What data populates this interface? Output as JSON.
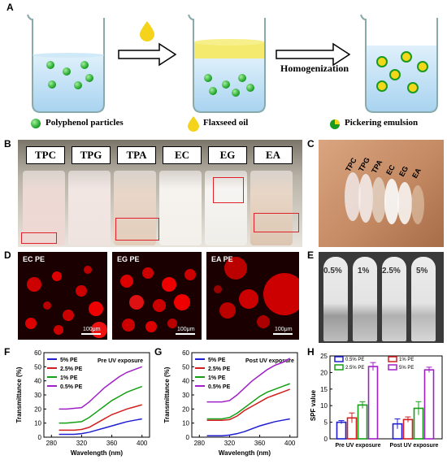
{
  "panel_labels": {
    "a": "A",
    "b": "B",
    "c": "C",
    "d": "D",
    "e": "E",
    "f": "F",
    "g": "G",
    "h": "H"
  },
  "schematic": {
    "homogenization": "Homogenization",
    "legend": [
      "Polyphenol particles",
      "Flaxseed oil",
      "Pickering emulsion"
    ]
  },
  "vials": [
    "TPC",
    "TPG",
    "TPA",
    "EC",
    "EG",
    "EA"
  ],
  "arm_labels": [
    "TPC",
    "TPG",
    "TPA",
    "EC",
    "EG",
    "EA"
  ],
  "micrographs": [
    {
      "label": "EC PE",
      "scale": "100μm"
    },
    {
      "label": "EG PE",
      "scale": "100μm"
    },
    {
      "label": "EA PE",
      "scale": "100μm"
    }
  ],
  "tubes": [
    "0.5%",
    "1%",
    "2.5%",
    "5%"
  ],
  "colors": {
    "s5": "#1f1fd1",
    "s25": "#d11f1f",
    "s1": "#14a014",
    "s05": "#a020c8"
  },
  "chart_data": [
    {
      "type": "line",
      "annotation": "Pre UV exposure",
      "xlabel": "Wavelength (nm)",
      "ylabel": "Transmittance (%)",
      "xlim": [
        270,
        410
      ],
      "ylim": [
        0,
        60
      ],
      "xticks": [
        280,
        320,
        360,
        400
      ],
      "yticks": [
        0,
        10,
        20,
        30,
        40,
        50,
        60
      ],
      "x": [
        290,
        300,
        310,
        320,
        330,
        340,
        350,
        360,
        370,
        380,
        390,
        400
      ],
      "series": [
        {
          "name": "5% PE",
          "color": "#1f1fd1",
          "values": [
            2,
            2,
            2,
            2.5,
            3.5,
            5,
            6.5,
            8,
            9.5,
            11,
            12,
            13
          ]
        },
        {
          "name": "2.5% PE",
          "color": "#d11f1f",
          "values": [
            5,
            5,
            5,
            5.5,
            7,
            10,
            13,
            16,
            18,
            20,
            21.5,
            23
          ]
        },
        {
          "name": "1% PE",
          "color": "#14a014",
          "values": [
            10,
            10,
            10.5,
            11,
            14,
            18,
            22,
            26,
            29,
            32,
            34,
            36
          ]
        },
        {
          "name": "0.5% PE",
          "color": "#a020c8",
          "values": [
            20,
            20,
            20.5,
            21,
            25,
            30,
            35,
            39,
            43,
            46,
            48,
            50
          ]
        }
      ]
    },
    {
      "type": "line",
      "annotation": "Post UV exposure",
      "xlabel": "Wavelength (nm)",
      "ylabel": "Transmittance (%)",
      "xlim": [
        270,
        410
      ],
      "ylim": [
        0,
        60
      ],
      "xticks": [
        280,
        320,
        360,
        400
      ],
      "yticks": [
        0,
        10,
        20,
        30,
        40,
        50,
        60
      ],
      "x": [
        290,
        300,
        310,
        320,
        330,
        340,
        350,
        360,
        370,
        380,
        390,
        400
      ],
      "series": [
        {
          "name": "5% PE",
          "color": "#1f1fd1",
          "values": [
            1,
            1,
            1,
            1.5,
            2.5,
            4,
            6,
            8,
            9.5,
            11,
            12,
            13
          ]
        },
        {
          "name": "2.5% PE",
          "color": "#d11f1f",
          "values": [
            12,
            12,
            12,
            12.5,
            15,
            19,
            22,
            25,
            28,
            30,
            32,
            34
          ]
        },
        {
          "name": "1% PE",
          "color": "#14a014",
          "values": [
            13,
            13,
            13,
            14,
            17,
            21,
            25,
            29,
            32,
            34,
            36,
            38
          ]
        },
        {
          "name": "0.5% PE",
          "color": "#a020c8",
          "values": [
            25,
            25,
            25,
            26,
            30,
            35,
            40,
            44,
            48,
            51,
            53,
            56
          ]
        }
      ]
    },
    {
      "type": "bar",
      "ylabel": "SPF value",
      "categories": [
        "Pre UV exposure",
        "Post UV exposure"
      ],
      "ylim": [
        0,
        25
      ],
      "yticks": [
        0,
        5,
        10,
        15,
        20,
        25
      ],
      "series": [
        {
          "name": "0.5% PE",
          "color": "#1f1fd1",
          "values": [
            5.0,
            4.5
          ],
          "errors": [
            0.5,
            1.5
          ]
        },
        {
          "name": "2.5% PE",
          "color": "#14a014",
          "values": [
            10.2,
            9.2
          ],
          "errors": [
            1.0,
            2.0
          ]
        },
        {
          "name": "1% PE",
          "color": "#d11f1f",
          "values": [
            6.3,
            5.8
          ],
          "errors": [
            1.5,
            0.8
          ]
        },
        {
          "name": "5% PE",
          "color": "#a020c8",
          "values": [
            21.8,
            20.8
          ],
          "errors": [
            1.2,
            0.8
          ]
        }
      ]
    }
  ]
}
